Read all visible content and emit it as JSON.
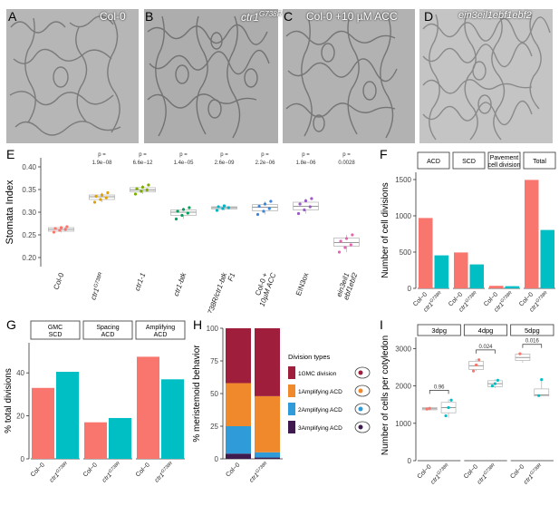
{
  "panels": {
    "micro": [
      {
        "letter": "A",
        "label": "Col-0"
      },
      {
        "letter": "B",
        "label": "ctr1",
        "sup": "G738R"
      },
      {
        "letter": "C",
        "label": "Col-0 +10 µM ACC"
      },
      {
        "letter": "D",
        "label": "ein3eil1ebf1ebf2"
      }
    ],
    "letters": {
      "E": "E",
      "F": "F",
      "G": "G",
      "H": "H",
      "I": "I"
    }
  },
  "chart_data": [
    {
      "id": "E",
      "type": "box",
      "ylabel": "Stomata Index",
      "ylim": [
        0.18,
        0.42
      ],
      "yticks": [
        "0.20",
        "0.25",
        "0.30",
        "0.35",
        "0.40"
      ],
      "categories": [
        "Col-0",
        "ctr1G738R",
        "ctr1-1",
        "ctr1-btk",
        "ctr1G738R/ctr1-btk F1",
        "Col-0 + 10µM ACC",
        "EIN3ox",
        "ein3eil1 ebf1ebf2"
      ],
      "tick_labels": [
        "Col-0",
        "ctr1",
        "ctr1-1",
        "ctr1-btk",
        "ctr1G738R/ctr1-btk",
        "Col-0 +",
        "EIN3ox",
        "ein3eil1"
      ],
      "tick_labels_2": [
        "",
        "",
        "",
        "",
        "F1",
        "10µM ACC",
        "",
        "ebf1ebf2"
      ],
      "tick_sup": [
        "",
        "G738R",
        "",
        "",
        "",
        "",
        "",
        ""
      ],
      "p_label": "p =",
      "p_values": [
        "",
        "1.9e−08",
        "6.6e−12",
        "1.4e−05",
        "2.6e−09",
        "2.2e−06",
        "1.8e−06",
        "0.0028"
      ],
      "colors": [
        "#F8766D",
        "#E69F00",
        "#7CAE00",
        "#00A35A",
        "#00B4C8",
        "#3A87E0",
        "#9A5BC9",
        "#E762B0"
      ],
      "boxes": [
        {
          "q1": 0.258,
          "med": 0.262,
          "q3": 0.266,
          "min": 0.255,
          "max": 0.269
        },
        {
          "q1": 0.328,
          "med": 0.334,
          "q3": 0.338,
          "min": 0.322,
          "max": 0.343
        },
        {
          "q1": 0.345,
          "med": 0.349,
          "q3": 0.354,
          "min": 0.34,
          "max": 0.36
        },
        {
          "q1": 0.293,
          "med": 0.3,
          "q3": 0.305,
          "min": 0.285,
          "max": 0.31
        },
        {
          "q1": 0.307,
          "med": 0.31,
          "q3": 0.312,
          "min": 0.304,
          "max": 0.315
        },
        {
          "q1": 0.303,
          "med": 0.311,
          "q3": 0.317,
          "min": 0.295,
          "max": 0.324
        },
        {
          "q1": 0.305,
          "med": 0.313,
          "q3": 0.322,
          "min": 0.297,
          "max": 0.33
        },
        {
          "q1": 0.225,
          "med": 0.233,
          "q3": 0.243,
          "min": 0.212,
          "max": 0.25
        }
      ],
      "points": [
        [
          0.256,
          0.26,
          0.262,
          0.264,
          0.266,
          0.268
        ],
        [
          0.322,
          0.328,
          0.332,
          0.335,
          0.338,
          0.343
        ],
        [
          0.34,
          0.346,
          0.349,
          0.352,
          0.355,
          0.36
        ],
        [
          0.285,
          0.293,
          0.298,
          0.302,
          0.306,
          0.31
        ],
        [
          0.304,
          0.308,
          0.31,
          0.312,
          0.314
        ],
        [
          0.295,
          0.302,
          0.308,
          0.313,
          0.318,
          0.324
        ],
        [
          0.297,
          0.305,
          0.312,
          0.318,
          0.325,
          0.33
        ],
        [
          0.212,
          0.222,
          0.228,
          0.236,
          0.242,
          0.25
        ]
      ]
    },
    {
      "id": "F",
      "type": "bar",
      "ylabel": "Number of cell divisions",
      "ylim": [
        0,
        1600
      ],
      "yticks": [
        0,
        500,
        1000,
        1500
      ],
      "facets": [
        "ACD",
        "SCD",
        "Pavement cell division",
        "Total"
      ],
      "facet_lines": [
        [
          "ACD"
        ],
        [
          "SCD"
        ],
        [
          "Pavement",
          "cell division"
        ],
        [
          "Total"
        ]
      ],
      "categories": [
        "Col-0",
        "ctr1G738R"
      ],
      "tick_labels": [
        "Col−0",
        "ctr1"
      ],
      "tick_sup": [
        "",
        "G738R"
      ],
      "colors": [
        "#F8766D",
        "#00BFC4"
      ],
      "values": [
        [
          970,
          455
        ],
        [
          495,
          330
        ],
        [
          35,
          30
        ],
        [
          1495,
          805
        ]
      ]
    },
    {
      "id": "G",
      "type": "bar",
      "ylabel": "% total divisions",
      "ylim": [
        0,
        54
      ],
      "yticks": [
        0,
        20,
        40
      ],
      "facets": [
        "GMC SCD",
        "Spacing ACD",
        "Amplifying ACD"
      ],
      "facet_lines": [
        [
          "GMC",
          "SCD"
        ],
        [
          "Spacing",
          "ACD"
        ],
        [
          "Amplifying",
          "ACD"
        ]
      ],
      "categories": [
        "Col-0",
        "ctr1G738R"
      ],
      "tick_labels": [
        "Col−0",
        "ctr1"
      ],
      "tick_sup": [
        "",
        "G738R"
      ],
      "colors": [
        "#F8766D",
        "#00BFC4"
      ],
      "values": [
        [
          33,
          40.5
        ],
        [
          17,
          19
        ],
        [
          47.5,
          37
        ]
      ]
    },
    {
      "id": "H",
      "type": "bar",
      "stacked": true,
      "ylabel": "% meristemoid behavior",
      "ylim": [
        0,
        100
      ],
      "yticks": [
        0,
        25,
        50,
        75,
        100
      ],
      "categories": [
        "Col-0",
        "ctr1G738R"
      ],
      "tick_labels": [
        "Col−0",
        "ctr1"
      ],
      "tick_sup": [
        "",
        "G738R"
      ],
      "legend_title": "Division types",
      "series": [
        {
          "name": "3Amplifying ACD",
          "color": "#3F1A4F",
          "values": [
            4,
            1
          ]
        },
        {
          "name": "2Amplifying ACD",
          "color": "#2F9BD9",
          "values": [
            21,
            4
          ]
        },
        {
          "name": "1Amplifying ACD",
          "color": "#F0892B",
          "values": [
            33,
            43
          ]
        },
        {
          "name": "1GMC division",
          "color": "#9E1E3C",
          "values": [
            42,
            52
          ]
        }
      ]
    },
    {
      "id": "I",
      "type": "box",
      "ylabel": "Number of cells per cotyledon",
      "ylim": [
        0,
        3300
      ],
      "yticks": [
        0,
        1000,
        2000,
        3000
      ],
      "facets": [
        "3dpg",
        "4dpg",
        "5dpg"
      ],
      "categories": [
        "Col-0",
        "ctr1G738R"
      ],
      "tick_labels": [
        "Col−0",
        "ctr1"
      ],
      "tick_sup": [
        "",
        "G738R"
      ],
      "colors": [
        "#F8766D",
        "#00BFC4"
      ],
      "p_values": [
        "0.96",
        "0.024",
        "0.016"
      ],
      "boxes": [
        [
          {
            "q1": 1360,
            "med": 1390,
            "q3": 1420,
            "min": 1340,
            "max": 1440
          },
          {
            "q1": 1280,
            "med": 1420,
            "q3": 1560,
            "min": 1150,
            "max": 1640
          }
        ],
        [
          {
            "q1": 2440,
            "med": 2540,
            "q3": 2660,
            "min": 2400,
            "max": 2720
          },
          {
            "q1": 1980,
            "med": 2060,
            "q3": 2140,
            "min": 1940,
            "max": 2180
          }
        ],
        [
          {
            "q1": 2680,
            "med": 2760,
            "q3": 2850,
            "min": 2620,
            "max": 2870
          },
          {
            "q1": 1730,
            "med": 1760,
            "q3": 1920,
            "min": 1720,
            "max": 2170
          }
        ]
      ],
      "points": [
        [
          [
            1380,
            1400
          ],
          [
            1200,
            1420,
            1620
          ]
        ],
        [
          [
            2400,
            2560,
            2700
          ],
          [
            2000,
            2060,
            2150
          ]
        ],
        [
          [
            2860
          ],
          [
            1740,
            2170
          ]
        ]
      ]
    }
  ]
}
